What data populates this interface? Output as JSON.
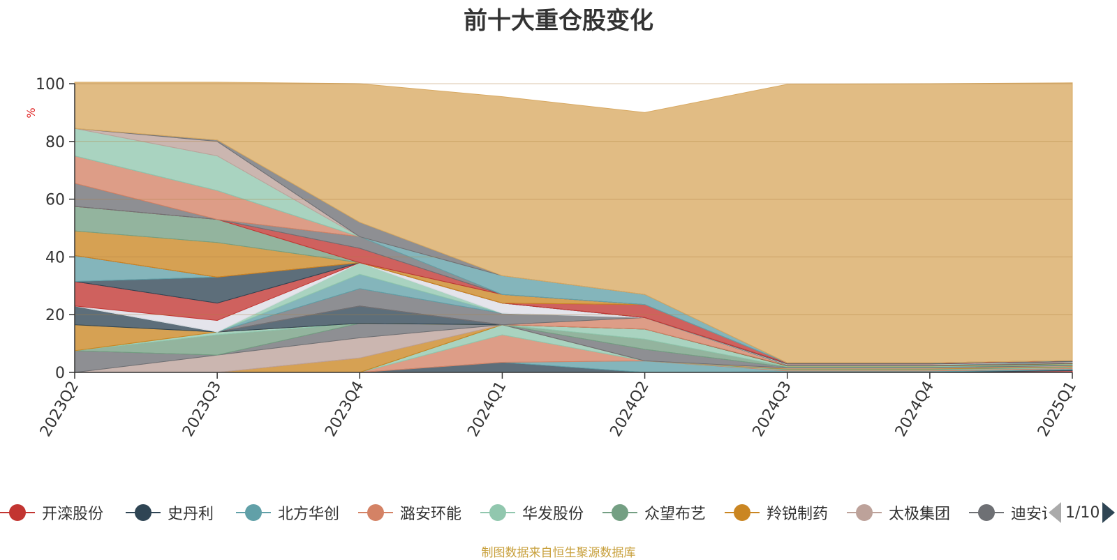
{
  "chart_data": {
    "type": "area",
    "title": "前十大重仓股变化",
    "ylabel": "%",
    "ylim": [
      0,
      100
    ],
    "yticks": [
      0,
      20,
      40,
      60,
      80,
      100
    ],
    "categories": [
      "2023Q2",
      "2023Q3",
      "2023Q4",
      "2024Q1",
      "2024Q2",
      "2024Q3",
      "2024Q4",
      "2025Q1"
    ],
    "stacked": true,
    "grid": true,
    "series": [
      {
        "name": "开滦股份",
        "color": "#c23531",
        "values": [
          0,
          0,
          0,
          0,
          0,
          0,
          0,
          0.6
        ]
      },
      {
        "name": "史丹利",
        "color": "#2f4554",
        "values": [
          0,
          0,
          0,
          3.5,
          0,
          0.2,
          0.2,
          0.3
        ]
      },
      {
        "name": "北方华创",
        "color": "#61a0a8",
        "values": [
          0,
          0,
          0,
          0,
          4,
          0.3,
          0.3,
          0.4
        ]
      },
      {
        "name": "潞安环能",
        "color": "#d48265",
        "values": [
          0,
          0,
          0,
          9.5,
          0,
          0.3,
          0.3,
          0.3
        ]
      },
      {
        "name": "华发股份",
        "color": "#91c7ae",
        "values": [
          0,
          0,
          0,
          3.5,
          0,
          0.2,
          0.2,
          0.2
        ]
      },
      {
        "name": "众望布艺",
        "color": "#749f83",
        "values": [
          0,
          0,
          0,
          0,
          0,
          0.2,
          0.2,
          0.2
        ]
      },
      {
        "name": "羚锐制药",
        "color": "#ca8622",
        "values": [
          0,
          0,
          5,
          0,
          0,
          0.2,
          0.2,
          0.2
        ]
      },
      {
        "name": "太极集团",
        "color": "#bda29a",
        "values": [
          0,
          6,
          7,
          0,
          0,
          0.2,
          0.2,
          0.2
        ]
      },
      {
        "name": "迪安诊断",
        "color": "#6e7074",
        "values": [
          7.5,
          0,
          5,
          0,
          4,
          0.2,
          0.2,
          0.2
        ]
      },
      {
        "name": "",
        "color": "#749f83",
        "values": [
          0,
          7,
          0,
          0,
          3.5,
          0.2,
          0.2,
          0.2
        ]
      },
      {
        "name": "",
        "color": "#91c7ae",
        "values": [
          0,
          1,
          0,
          0,
          3.5,
          0.2,
          0.2,
          0.2
        ]
      },
      {
        "name": "",
        "color": "#ca8622",
        "values": [
          9,
          0,
          0,
          0,
          0,
          0.1,
          0.1,
          0.1
        ]
      },
      {
        "name": "",
        "color": "#2f4554",
        "values": [
          6.5,
          0,
          6,
          0,
          0,
          0.1,
          0.1,
          0.1
        ]
      },
      {
        "name": "",
        "color": "#d48265",
        "values": [
          0,
          0,
          0,
          0,
          4,
          0.1,
          0.1,
          0.1
        ]
      },
      {
        "name": "",
        "color": "#6e7074",
        "values": [
          0,
          0,
          6,
          4,
          0,
          0.1,
          0.1,
          0.1
        ]
      },
      {
        "name": "",
        "color": "#61a0a8",
        "values": [
          0,
          0,
          5,
          0,
          0,
          0.1,
          0.1,
          0.1
        ]
      },
      {
        "name": "",
        "color": "#91c7ae",
        "values": [
          0,
          0,
          4,
          0,
          0,
          0.1,
          0.1,
          0.1
        ]
      },
      {
        "name": "",
        "color": "#dddde5",
        "values": [
          0,
          4,
          0,
          3.5,
          0,
          0.1,
          0.1,
          0.1
        ]
      },
      {
        "name": "",
        "color": "#c23531",
        "values": [
          8.5,
          6,
          0,
          0,
          0,
          0.1,
          0.1,
          0.1
        ]
      },
      {
        "name": "",
        "color": "#2f4554",
        "values": [
          0,
          9,
          0,
          0,
          0,
          0.1,
          0.1,
          0.1
        ]
      },
      {
        "name": "",
        "color": "#61a0a8",
        "values": [
          9,
          0,
          0,
          0,
          0,
          0.1,
          0.1,
          0.1
        ]
      },
      {
        "name": "",
        "color": "#c23531",
        "values": [
          0,
          0,
          0,
          0,
          4.5,
          0.1,
          0.1,
          0.1
        ]
      },
      {
        "name": "",
        "color": "#ca8622",
        "values": [
          8.5,
          12,
          0,
          3,
          0,
          0,
          0,
          0
        ]
      },
      {
        "name": "",
        "color": "#749f83",
        "values": [
          8.5,
          8,
          0,
          0,
          0,
          0,
          0,
          0
        ]
      },
      {
        "name": "",
        "color": "#c23531",
        "values": [
          0,
          0,
          5,
          0,
          0,
          0,
          0,
          0
        ]
      },
      {
        "name": "",
        "color": "#6e7074",
        "values": [
          8,
          0,
          4,
          0,
          0,
          0,
          0,
          0
        ]
      },
      {
        "name": "",
        "color": "#d48265",
        "values": [
          9.5,
          10,
          0,
          0,
          0,
          0,
          0,
          0
        ]
      },
      {
        "name": "",
        "color": "#61a0a8",
        "values": [
          0,
          0,
          0,
          6.5,
          3.5,
          0,
          0,
          0
        ]
      },
      {
        "name": "",
        "color": "#91c7ae",
        "values": [
          9.5,
          12,
          0,
          0,
          0,
          0,
          0,
          0
        ]
      },
      {
        "name": "",
        "color": "#bda29a",
        "values": [
          0,
          5,
          0,
          0,
          0,
          0,
          0,
          0
        ]
      },
      {
        "name": "",
        "color": "#6e7074",
        "values": [
          0,
          0.5,
          5,
          0,
          0,
          0,
          0,
          0
        ]
      },
      {
        "name": "",
        "color": "#d8a962",
        "values": [
          16,
          20,
          48,
          62,
          63,
          96.5,
          96.7,
          96.2
        ]
      }
    ],
    "legend": {
      "position": "bottom",
      "items": [
        "开滦股份",
        "史丹利",
        "北方华创",
        "潞安环能",
        "华发股份",
        "众望布艺",
        "羚锐制药",
        "太极集团",
        "迪安诊断"
      ],
      "page": "1/10"
    }
  },
  "source_note": "制图数据来自恒生聚源数据库"
}
